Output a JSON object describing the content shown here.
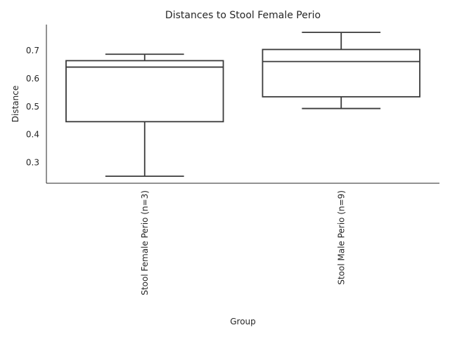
{
  "chart_data": {
    "type": "box",
    "title": "Distances to Stool Female Perio",
    "xlabel": "Group",
    "ylabel": "Distance",
    "ylim": [
      0.225,
      0.792
    ],
    "yticks": [
      0.3,
      0.4,
      0.5,
      0.6,
      0.7
    ],
    "ytick_labels": [
      "0.3",
      "0.4",
      "0.5",
      "0.6",
      "0.7"
    ],
    "grid": false,
    "categories": [
      "Stool Female Perio (n=3)",
      "Stool Male Perio (n=9)"
    ],
    "boxes": [
      {
        "name": "Stool Female Perio (n=3)",
        "whisker_low": 0.25,
        "q1": 0.445,
        "median": 0.64,
        "q3": 0.663,
        "whisker_high": 0.686
      },
      {
        "name": "Stool Male Perio (n=9)",
        "whisker_low": 0.492,
        "q1": 0.534,
        "median": 0.66,
        "q3": 0.703,
        "whisker_high": 0.764
      }
    ],
    "box_color": "#ffffff",
    "line_color": "#3a3a3a"
  }
}
